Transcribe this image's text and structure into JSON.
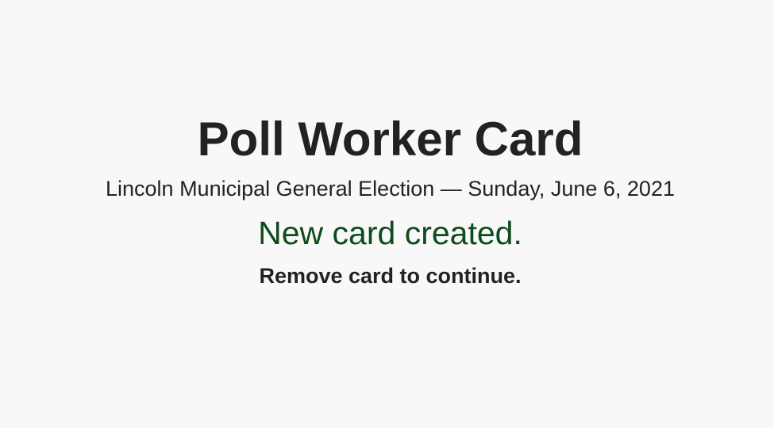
{
  "screen": {
    "title": "Poll Worker Card",
    "election": {
      "title": "Lincoln Municipal General Election",
      "separator": "—",
      "date": "Sunday, June 6, 2021"
    },
    "status_message": "New card created.",
    "instruction": "Remove card to continue."
  },
  "colors": {
    "background": "#f8f8f8",
    "text": "#222222",
    "success": "#0f4a1c"
  }
}
